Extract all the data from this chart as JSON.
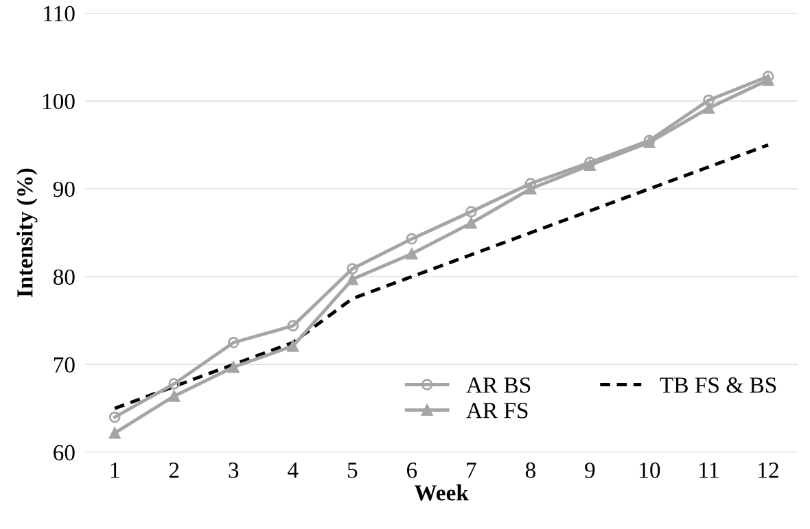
{
  "chart_data": {
    "type": "line",
    "xlabel": "Week",
    "ylabel": "Intensity (%)",
    "categories": [
      "1",
      "2",
      "3",
      "4",
      "5",
      "6",
      "7",
      "8",
      "9",
      "10",
      "11",
      "12"
    ],
    "series": [
      {
        "name": "AR BS",
        "color": "#a5a5a5",
        "marker": "circle",
        "line_style": "solid",
        "values": [
          64.0,
          67.8,
          72.5,
          74.4,
          80.9,
          84.3,
          87.4,
          90.6,
          93.0,
          95.5,
          100.1,
          102.8
        ]
      },
      {
        "name": "AR FS",
        "color": "#a5a5a5",
        "marker": "triangle",
        "line_style": "solid",
        "values": [
          62.2,
          66.4,
          69.7,
          72.1,
          79.7,
          82.6,
          86.1,
          90.0,
          92.7,
          95.3,
          99.2,
          102.4
        ]
      },
      {
        "name": "TB FS & BS",
        "color": "#000000",
        "marker": "none",
        "line_style": "dashed",
        "values": [
          65.0,
          67.5,
          70.0,
          72.5,
          77.5,
          80.0,
          82.5,
          85.0,
          87.5,
          90.0,
          92.5,
          95.0
        ]
      }
    ],
    "ylim": [
      60,
      110
    ],
    "yticks": [
      60,
      70,
      80,
      90,
      100,
      110
    ],
    "grid": "y",
    "legend": "bottom right"
  }
}
